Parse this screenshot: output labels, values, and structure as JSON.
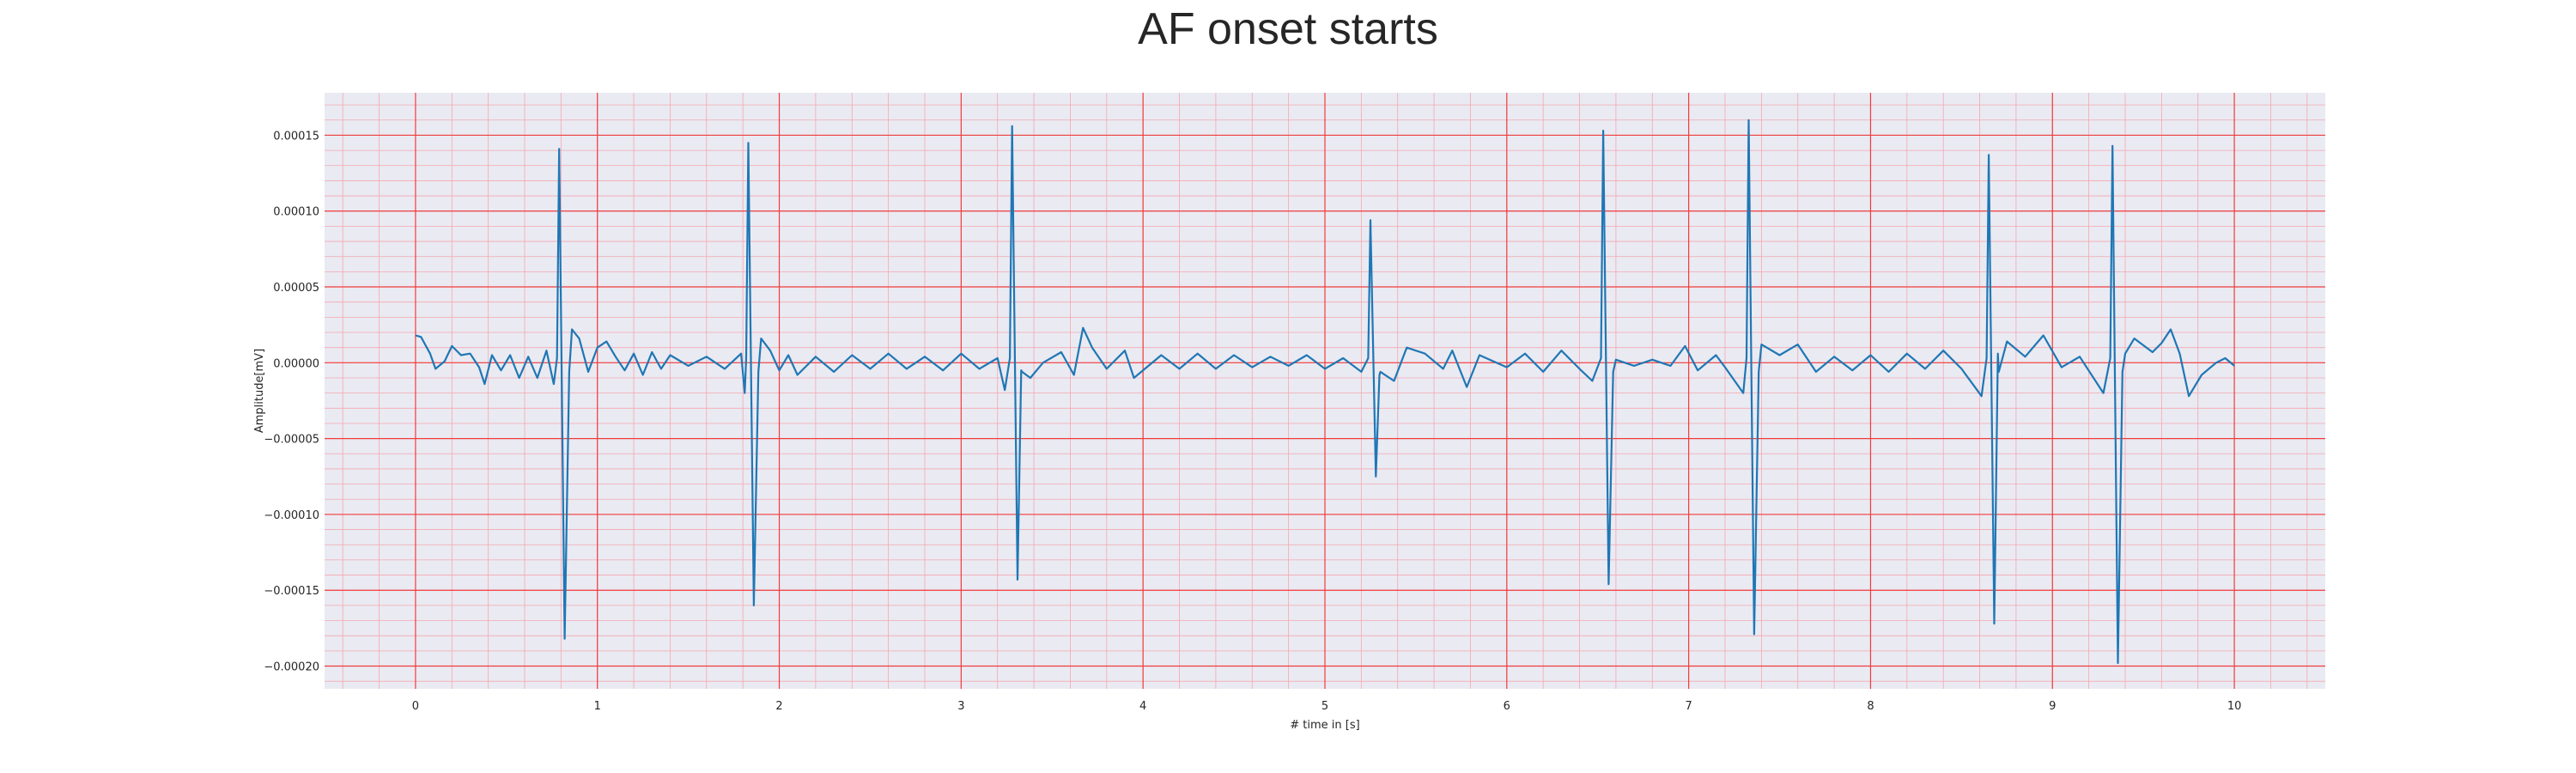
{
  "chart_data": {
    "type": "line",
    "title": "AF onset starts",
    "xlabel": "# time in [s]",
    "ylabel": "Amplitude[mV]",
    "xlim": [
      -0.5,
      10.5
    ],
    "ylim": [
      -0.000215,
      0.000178
    ],
    "x_ticks": [
      0,
      1,
      2,
      3,
      4,
      5,
      6,
      7,
      8,
      9,
      10
    ],
    "x_tick_labels": [
      "0",
      "1",
      "2",
      "3",
      "4",
      "5",
      "6",
      "7",
      "8",
      "9",
      "10"
    ],
    "y_ticks": [
      0.00015,
      0.0001,
      5e-05,
      0.0,
      -5e-05,
      -0.0001,
      -0.00015,
      -0.0002
    ],
    "y_tick_labels": [
      "0.00015",
      "0.00010",
      "0.00005",
      "0.00000",
      "−0.00005",
      "−0.00010",
      "−0.00015",
      "−0.00020"
    ],
    "grid": true,
    "grid_color": "#f03c3c",
    "minor_grid_color": "#f4a7b0",
    "background_color": "#eaeaf2",
    "line_color": "#1f77b4",
    "baseline_start": 1.8e-05,
    "qrs_complexes": [
      {
        "t": 0.79,
        "peak": 0.000141,
        "trough": -0.000182
      },
      {
        "t": 1.83,
        "peak": 0.000145,
        "trough": -0.00016
      },
      {
        "t": 3.28,
        "peak": 0.000156,
        "trough": -0.000143
      },
      {
        "t": 5.25,
        "peak": 9.4e-05,
        "trough": -7.5e-05
      },
      {
        "t": 6.53,
        "peak": 0.000153,
        "trough": -0.000146
      },
      {
        "t": 7.33,
        "peak": 0.00016,
        "trough": -0.000179
      },
      {
        "t": 8.65,
        "peak": 0.000137,
        "trough": -0.000172
      },
      {
        "t": 9.33,
        "peak": 0.000143,
        "trough": -0.000198
      }
    ],
    "baseline_points": [
      {
        "x": 0.0,
        "y": 1.8e-05
      },
      {
        "x": 0.03,
        "y": 1.7e-05
      },
      {
        "x": 0.08,
        "y": 6e-06
      },
      {
        "x": 0.11,
        "y": -4e-06
      },
      {
        "x": 0.16,
        "y": 1e-06
      },
      {
        "x": 0.2,
        "y": 1.1e-05
      },
      {
        "x": 0.25,
        "y": 5e-06
      },
      {
        "x": 0.3,
        "y": 6e-06
      },
      {
        "x": 0.35,
        "y": -3e-06
      },
      {
        "x": 0.38,
        "y": -1.4e-05
      },
      {
        "x": 0.42,
        "y": 5e-06
      },
      {
        "x": 0.47,
        "y": -5e-06
      },
      {
        "x": 0.52,
        "y": 5e-06
      },
      {
        "x": 0.57,
        "y": -1e-05
      },
      {
        "x": 0.62,
        "y": 4e-06
      },
      {
        "x": 0.67,
        "y": -1e-05
      },
      {
        "x": 0.72,
        "y": 8e-06
      },
      {
        "x": 0.76,
        "y": -1.4e-05
      },
      {
        "x": 0.86,
        "y": 2.2e-05
      },
      {
        "x": 0.9,
        "y": 1.6e-05
      },
      {
        "x": 0.95,
        "y": -6e-06
      },
      {
        "x": 1.0,
        "y": 1e-05
      },
      {
        "x": 1.05,
        "y": 1.4e-05
      },
      {
        "x": 1.1,
        "y": 4e-06
      },
      {
        "x": 1.15,
        "y": -5e-06
      },
      {
        "x": 1.2,
        "y": 6e-06
      },
      {
        "x": 1.25,
        "y": -8e-06
      },
      {
        "x": 1.3,
        "y": 7e-06
      },
      {
        "x": 1.35,
        "y": -4e-06
      },
      {
        "x": 1.4,
        "y": 5e-06
      },
      {
        "x": 1.5,
        "y": -2e-06
      },
      {
        "x": 1.6,
        "y": 4e-06
      },
      {
        "x": 1.7,
        "y": -4e-06
      },
      {
        "x": 1.79,
        "y": 6e-06
      },
      {
        "x": 1.81,
        "y": -2e-05
      },
      {
        "x": 1.9,
        "y": 1.6e-05
      },
      {
        "x": 1.95,
        "y": 8e-06
      },
      {
        "x": 2.0,
        "y": -5e-06
      },
      {
        "x": 2.05,
        "y": 5e-06
      },
      {
        "x": 2.1,
        "y": -8e-06
      },
      {
        "x": 2.2,
        "y": 4e-06
      },
      {
        "x": 2.3,
        "y": -6e-06
      },
      {
        "x": 2.4,
        "y": 5e-06
      },
      {
        "x": 2.5,
        "y": -4e-06
      },
      {
        "x": 2.6,
        "y": 6e-06
      },
      {
        "x": 2.7,
        "y": -4e-06
      },
      {
        "x": 2.8,
        "y": 4e-06
      },
      {
        "x": 2.9,
        "y": -5e-06
      },
      {
        "x": 3.0,
        "y": 6e-06
      },
      {
        "x": 3.1,
        "y": -4e-06
      },
      {
        "x": 3.2,
        "y": 3e-06
      },
      {
        "x": 3.24,
        "y": -1.8e-05
      },
      {
        "x": 3.33,
        "y": -5e-06
      },
      {
        "x": 3.38,
        "y": -1e-05
      },
      {
        "x": 3.45,
        "y": 0.0
      },
      {
        "x": 3.55,
        "y": 7e-06
      },
      {
        "x": 3.62,
        "y": -8e-06
      },
      {
        "x": 3.67,
        "y": 2.3e-05
      },
      {
        "x": 3.72,
        "y": 1e-05
      },
      {
        "x": 3.8,
        "y": -4e-06
      },
      {
        "x": 3.9,
        "y": 8e-06
      },
      {
        "x": 3.95,
        "y": -1e-05
      },
      {
        "x": 4.1,
        "y": 5e-06
      },
      {
        "x": 4.2,
        "y": -4e-06
      },
      {
        "x": 4.3,
        "y": 6e-06
      },
      {
        "x": 4.4,
        "y": -4e-06
      },
      {
        "x": 4.5,
        "y": 5e-06
      },
      {
        "x": 4.6,
        "y": -3e-06
      },
      {
        "x": 4.7,
        "y": 4e-06
      },
      {
        "x": 4.8,
        "y": -2e-06
      },
      {
        "x": 4.9,
        "y": 5e-06
      },
      {
        "x": 5.0,
        "y": -4e-06
      },
      {
        "x": 5.1,
        "y": 3e-06
      },
      {
        "x": 5.2,
        "y": -6e-06
      },
      {
        "x": 5.3,
        "y": -8e-06
      },
      {
        "x": 5.38,
        "y": -1.2e-05
      },
      {
        "x": 5.45,
        "y": 1e-05
      },
      {
        "x": 5.55,
        "y": 6e-06
      },
      {
        "x": 5.65,
        "y": -4e-06
      },
      {
        "x": 5.7,
        "y": 8e-06
      },
      {
        "x": 5.78,
        "y": -1.6e-05
      },
      {
        "x": 5.85,
        "y": 5e-06
      },
      {
        "x": 6.0,
        "y": -3e-06
      },
      {
        "x": 6.1,
        "y": 6e-06
      },
      {
        "x": 6.2,
        "y": -6e-06
      },
      {
        "x": 6.3,
        "y": 8e-06
      },
      {
        "x": 6.4,
        "y": -4e-06
      },
      {
        "x": 6.47,
        "y": -1.2e-05
      },
      {
        "x": 6.6,
        "y": 2e-06
      },
      {
        "x": 6.7,
        "y": -2e-06
      },
      {
        "x": 6.8,
        "y": 2e-06
      },
      {
        "x": 6.9,
        "y": -2e-06
      },
      {
        "x": 6.98,
        "y": 1.1e-05
      },
      {
        "x": 7.05,
        "y": -5e-06
      },
      {
        "x": 7.15,
        "y": 5e-06
      },
      {
        "x": 7.2,
        "y": -3e-06
      },
      {
        "x": 7.3,
        "y": -2e-05
      },
      {
        "x": 7.4,
        "y": 1.2e-05
      },
      {
        "x": 7.5,
        "y": 5e-06
      },
      {
        "x": 7.6,
        "y": 1.2e-05
      },
      {
        "x": 7.7,
        "y": -6e-06
      },
      {
        "x": 7.8,
        "y": 4e-06
      },
      {
        "x": 7.9,
        "y": -5e-06
      },
      {
        "x": 8.0,
        "y": 5e-06
      },
      {
        "x": 8.1,
        "y": -6e-06
      },
      {
        "x": 8.2,
        "y": 6e-06
      },
      {
        "x": 8.3,
        "y": -4e-06
      },
      {
        "x": 8.4,
        "y": 8e-06
      },
      {
        "x": 8.5,
        "y": -4e-06
      },
      {
        "x": 8.61,
        "y": -2.2e-05
      },
      {
        "x": 8.7,
        "y": 6e-06
      },
      {
        "x": 8.75,
        "y": 1.4e-05
      },
      {
        "x": 8.85,
        "y": 4e-06
      },
      {
        "x": 8.95,
        "y": 1.8e-05
      },
      {
        "x": 9.05,
        "y": -3e-06
      },
      {
        "x": 9.15,
        "y": 4e-06
      },
      {
        "x": 9.28,
        "y": -2e-05
      },
      {
        "x": 9.4,
        "y": 6e-06
      },
      {
        "x": 9.45,
        "y": 1.6e-05
      },
      {
        "x": 9.55,
        "y": 7e-06
      },
      {
        "x": 9.6,
        "y": 1.3e-05
      },
      {
        "x": 9.65,
        "y": 2.2e-05
      },
      {
        "x": 9.7,
        "y": 6e-06
      },
      {
        "x": 9.75,
        "y": -2.2e-05
      },
      {
        "x": 9.82,
        "y": -8e-06
      },
      {
        "x": 9.9,
        "y": 0.0
      },
      {
        "x": 9.95,
        "y": 3e-06
      },
      {
        "x": 10.0,
        "y": -2e-06
      }
    ]
  }
}
